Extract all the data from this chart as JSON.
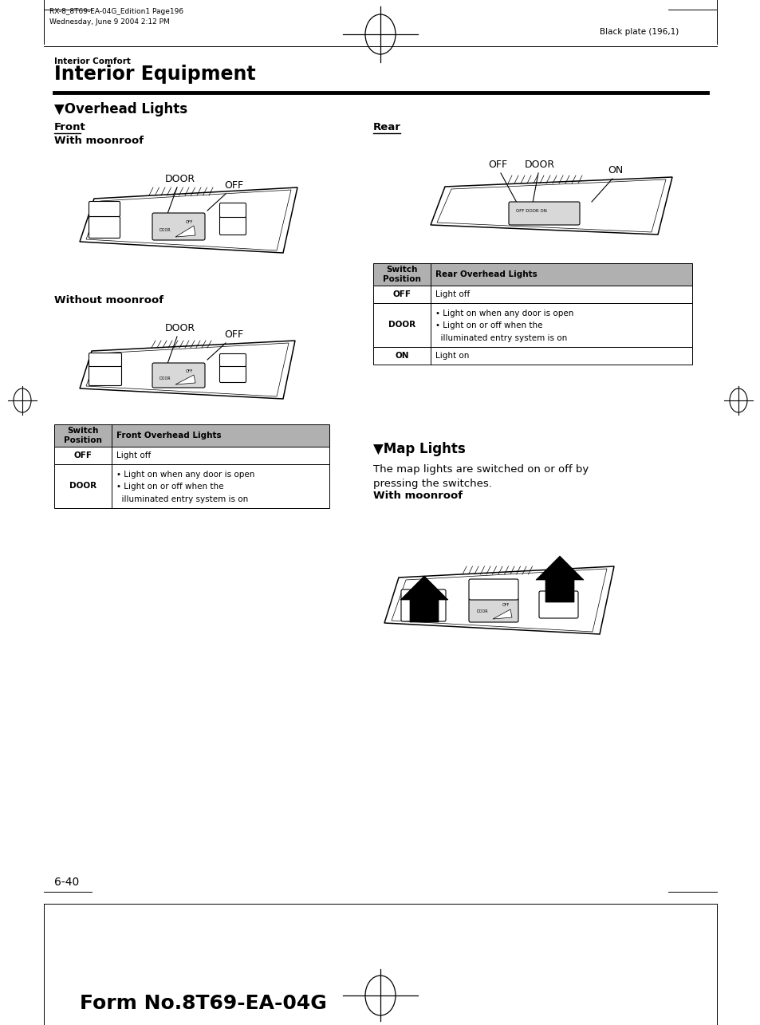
{
  "header_line1": "RX-8_8T69-EA-04G_Edition1 Page196",
  "header_line2": "Wednesday, June 9 2004 2:12 PM",
  "header_right": "Black plate (196,1)",
  "section_small": "Interior Comfort",
  "section_title": "Interior Equipment",
  "subsection1": "▼Overhead Lights",
  "front_label": "Front",
  "with_moonroof": "With moonroof",
  "without_moonroof": "Without moonroof",
  "rear_label": "Rear",
  "subsection2": "▼Map Lights",
  "map_lights_text1": "The map lights are switched on or off by",
  "map_lights_text2": "pressing the switches.",
  "with_moonroof2": "With moonroof",
  "front_table_header_col1": "Switch\nPosition",
  "front_table_header_col2": "Front Overhead Lights",
  "rear_table_header_col1": "Switch\nPosition",
  "rear_table_header_col2": "Rear Overhead Lights",
  "page_number": "6-40",
  "form_number": "Form No.8T69-EA-04G",
  "bg_color": "#ffffff",
  "text_color": "#000000",
  "table_header_bg": "#b0b0b0",
  "table_border_color": "#000000"
}
